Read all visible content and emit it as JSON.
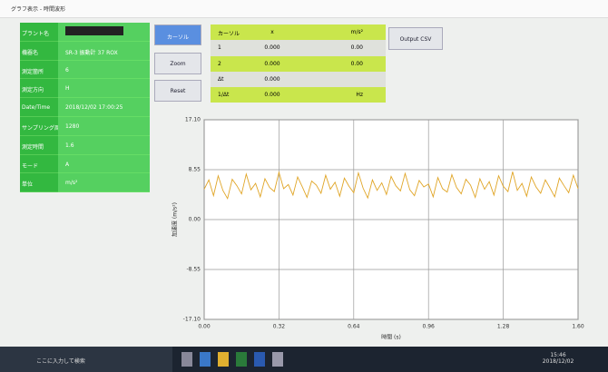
{
  "window": {
    "title": "グラフ表示 - 時間波形"
  },
  "info": {
    "rows": [
      {
        "label": "プラント名"
      },
      {
        "label": "機器名",
        "value": "SR-3 振動計 37 ROX"
      },
      {
        "label": "測定箇所",
        "value": "6"
      },
      {
        "label": "測定方向",
        "value": "H"
      },
      {
        "label": "Date/Time",
        "value": "2018/12/02 17:00:25"
      },
      {
        "label": "サンプリング周波数",
        "value": "1280"
      },
      {
        "label": "測定時間",
        "value": "1.6"
      },
      {
        "label": "モード",
        "value": "A"
      },
      {
        "label": "単位",
        "value": "m/s²"
      }
    ]
  },
  "buttons": [
    "カーソル",
    "Zoom",
    "Reset",
    "Output CSV"
  ],
  "cursor_table": {
    "header": [
      "カーソル",
      "x",
      "m/s²"
    ],
    "rows": [
      [
        "1",
        "0.000",
        "0.00"
      ],
      [
        "2",
        "0.000",
        "0.00"
      ],
      [
        "Δt",
        "0.000"
      ],
      [
        "1/Δt",
        "0.000",
        "Hz"
      ]
    ]
  },
  "chart_data": {
    "type": "line",
    "x_label": "時間 (s)",
    "y_label": "加速度 (m/s²)",
    "color": "#e0a526",
    "grid": true,
    "xlim": [
      0,
      1.6
    ],
    "ylim": [
      -17.1,
      17.1
    ],
    "xticks": [
      {
        "value": 0,
        "label": "0.00"
      },
      0.32,
      0.64,
      0.96,
      1.28,
      {
        "value": 1.6,
        "label": "1.60"
      }
    ],
    "yticks": [
      {
        "value": 17.1,
        "label": "17.10"
      },
      8.55,
      {
        "value": 0,
        "label": "0.00"
      },
      -8.55,
      {
        "value": -17.1,
        "label": "-17.10"
      }
    ],
    "x": [
      0,
      0.02,
      0.04,
      0.06,
      0.08,
      0.1,
      0.12,
      0.14,
      0.16,
      0.18,
      0.2,
      0.22,
      0.24,
      0.26,
      0.28,
      0.3,
      0.32,
      0.34,
      0.36,
      0.38,
      0.4,
      0.42,
      0.44,
      0.46,
      0.48,
      0.5,
      0.52,
      0.54,
      0.56,
      0.58,
      0.6,
      0.62,
      0.64,
      0.66,
      0.68,
      0.7,
      0.72,
      0.74,
      0.76,
      0.78,
      0.8,
      0.82,
      0.84,
      0.86,
      0.88,
      0.9,
      0.92,
      0.94,
      0.96,
      0.98,
      1,
      1.02,
      1.04,
      1.06,
      1.08,
      1.1,
      1.12,
      1.14,
      1.16,
      1.18,
      1.2,
      1.22,
      1.24,
      1.26,
      1.28,
      1.3,
      1.32,
      1.34,
      1.36,
      1.38,
      1.4,
      1.42,
      1.44,
      1.46,
      1.48,
      1.5,
      1.52,
      1.54,
      1.56,
      1.58,
      1.6
    ],
    "values": [
      5.2,
      6.8,
      4.1,
      7.5,
      5.0,
      3.6,
      6.9,
      5.8,
      4.4,
      7.8,
      5.1,
      6.2,
      3.9,
      7.0,
      5.5,
      4.8,
      8.1,
      5.3,
      6.0,
      4.2,
      7.3,
      5.6,
      3.8,
      6.6,
      5.9,
      4.5,
      7.6,
      5.2,
      6.4,
      4.0,
      7.1,
      5.7,
      4.6,
      8.0,
      5.4,
      3.7,
      6.8,
      5.0,
      6.3,
      4.3,
      7.4,
      5.8,
      4.9,
      7.9,
      5.1,
      4.1,
      6.7,
      5.6,
      6.1,
      3.9,
      7.2,
      5.3,
      4.7,
      7.7,
      5.5,
      4.4,
      6.9,
      5.9,
      3.8,
      7.0,
      5.2,
      6.5,
      4.2,
      7.5,
      5.7,
      4.8,
      8.2,
      5.0,
      6.2,
      4.0,
      7.3,
      5.6,
      4.5,
      6.8,
      5.4,
      3.9,
      7.1,
      5.8,
      4.6,
      7.6,
      5.3
    ]
  },
  "taskbar": {
    "search": "ここに入力して検索",
    "time": "15:46",
    "date": "2018/12/02"
  }
}
